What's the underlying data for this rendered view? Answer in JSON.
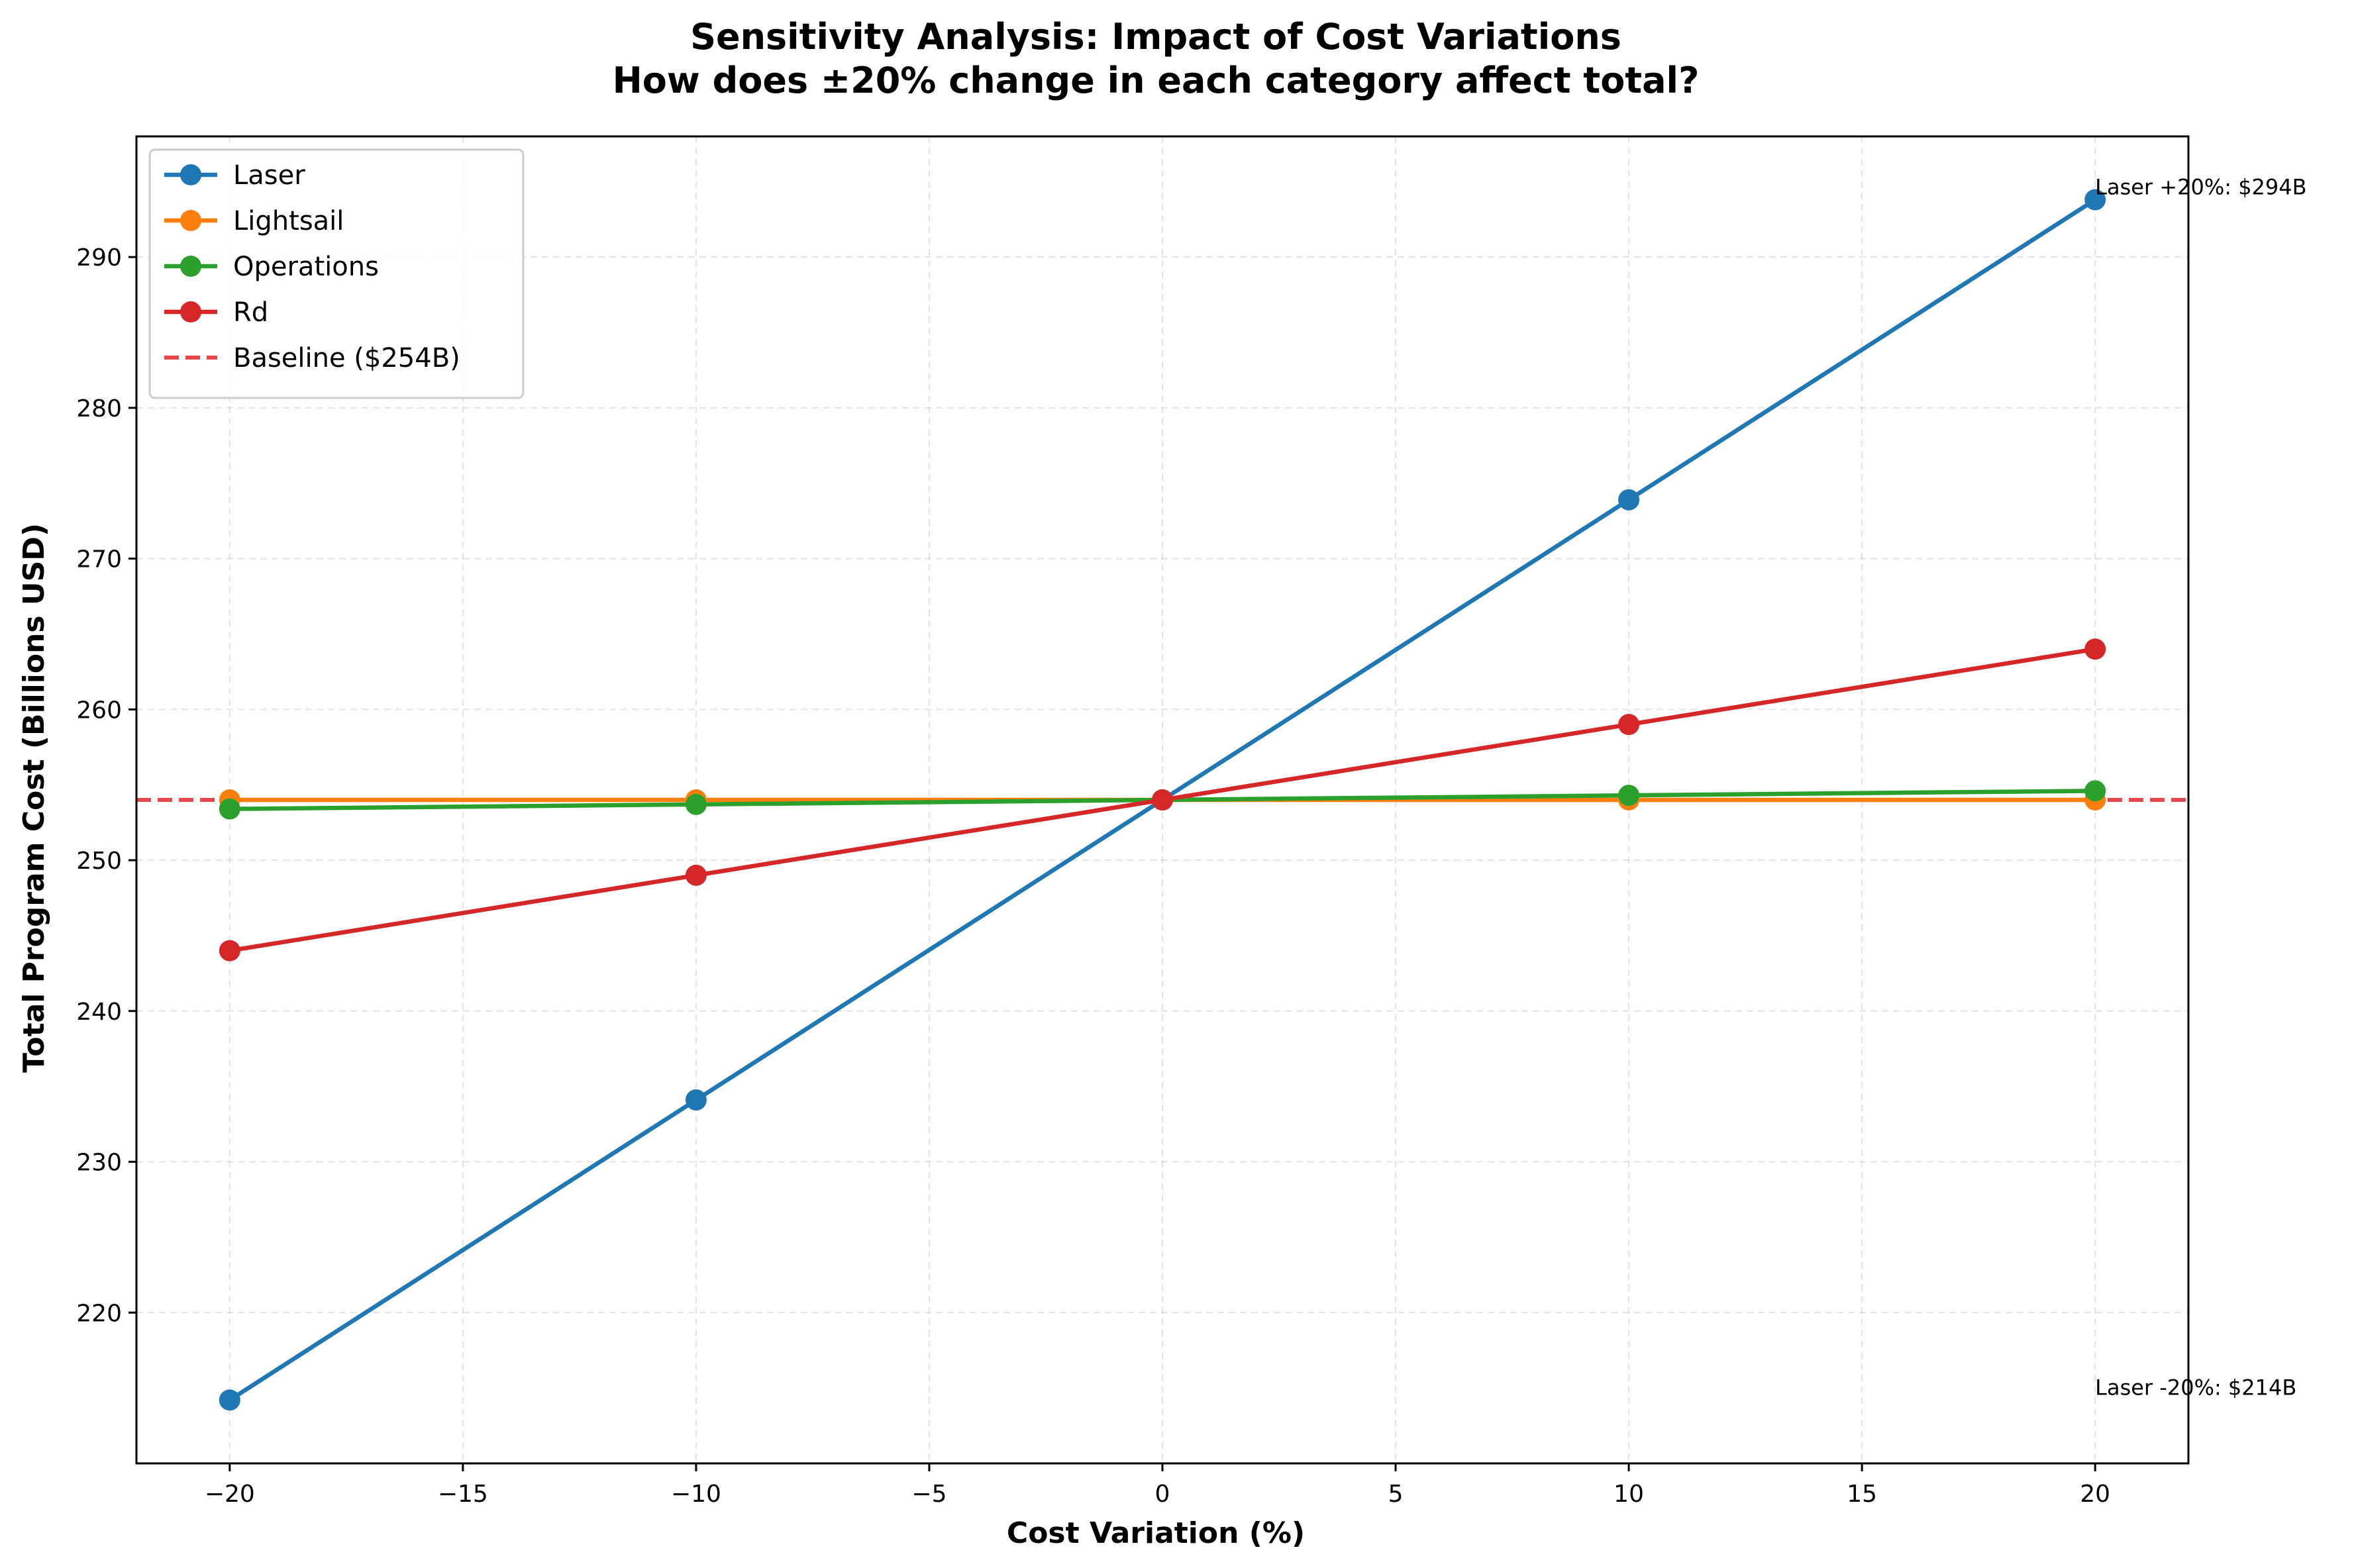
{
  "chart_data": {
    "type": "line",
    "title": "Sensitivity Analysis: Impact of Cost Variations",
    "subtitle": "How does ±20% change in each category affect total?",
    "xlabel": "Cost Variation (%)",
    "ylabel": "Total Program Cost (Billions USD)",
    "x": [
      -20,
      -10,
      0,
      10,
      20
    ],
    "xlim": [
      -22,
      22
    ],
    "ylim": [
      210,
      298
    ],
    "xticks": [
      -20,
      -15,
      -10,
      -5,
      0,
      5,
      10,
      15,
      20
    ],
    "xtick_labels": [
      "−20",
      "−15",
      "−10",
      "−5",
      "0",
      "5",
      "10",
      "15",
      "20"
    ],
    "yticks": [
      220,
      230,
      240,
      250,
      260,
      270,
      280,
      290
    ],
    "ytick_labels": [
      "220",
      "230",
      "240",
      "250",
      "260",
      "270",
      "280",
      "290"
    ],
    "grid": true,
    "legend_position": "top-left",
    "series": [
      {
        "name": "Laser",
        "color": "#1f77b4",
        "values": [
          214.2,
          234.1,
          254.0,
          273.9,
          293.8
        ]
      },
      {
        "name": "Lightsail",
        "color": "#ff7f0e",
        "values": [
          254.0,
          254.0,
          254.0,
          254.0,
          254.0
        ]
      },
      {
        "name": "Operations",
        "color": "#2ca02c",
        "values": [
          253.4,
          253.7,
          254.0,
          254.3,
          254.6
        ]
      },
      {
        "name": "Rd",
        "color": "#d62728",
        "values": [
          244.0,
          249.0,
          254.0,
          259.0,
          264.0
        ]
      }
    ],
    "baseline": {
      "name": "Baseline ($254B)",
      "value": 254.0,
      "color": "#e8474a"
    },
    "annotations": [
      {
        "text": "Laser +20%: $294B",
        "x": 20,
        "y": 293.8
      },
      {
        "text": "Laser -20%: $214B",
        "x": 20,
        "y": 214.2
      }
    ]
  }
}
